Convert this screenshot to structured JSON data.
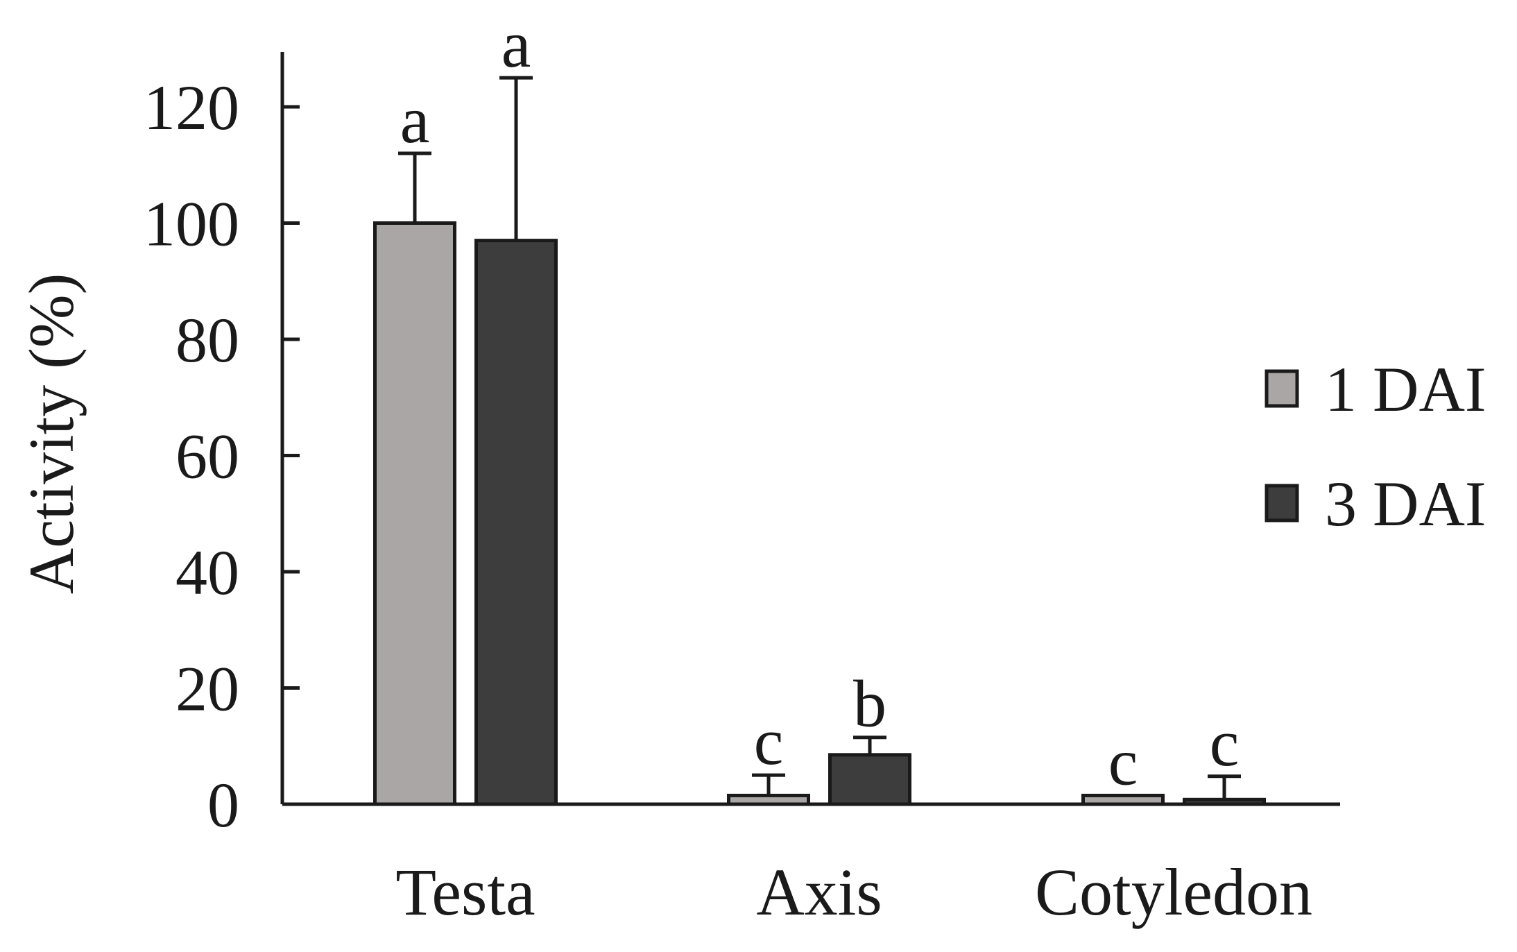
{
  "chart_data": {
    "type": "bar",
    "ylabel": "Activity (%)",
    "xlabel": "",
    "ylim": [
      0,
      130
    ],
    "yticks": [
      0,
      20,
      40,
      60,
      80,
      100,
      120
    ],
    "categories": [
      "Testa",
      "Axis",
      "Cotyledon"
    ],
    "legend_position": "right",
    "series": [
      {
        "name": "1 DAI",
        "color": "#aaa6a6",
        "values": [
          100,
          1.5,
          1.5
        ],
        "errors": [
          12,
          3.5,
          0
        ],
        "significance": [
          "a",
          "c",
          "c"
        ]
      },
      {
        "name": "3 DAI",
        "color": "#3d3d3d",
        "values": [
          97,
          8.5,
          0.8
        ],
        "errors": [
          28,
          3,
          4
        ],
        "significance": [
          "a",
          "b",
          "c"
        ]
      }
    ]
  }
}
